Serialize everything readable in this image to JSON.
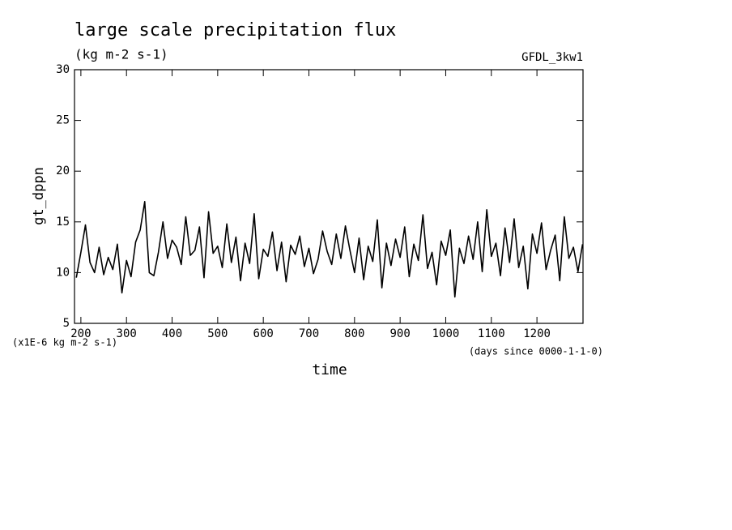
{
  "chart_data": {
    "type": "line",
    "title": "large scale precipitation flux",
    "subtitle": "(kg m-2 s-1)",
    "dataset_label": "GFDL_3kw1",
    "y_label": "gt_dppn",
    "y_units": "(x1E-6 kg m-2 s-1)",
    "x_label": "time",
    "x_units": "(days since 0000-1-1-0)",
    "xlim": [
      186,
      1301
    ],
    "xticks": [
      200,
      300,
      400,
      500,
      600,
      700,
      800,
      900,
      1000,
      1100,
      1200
    ],
    "ylim": [
      5,
      30
    ],
    "yticks": [
      5,
      10,
      15,
      20,
      25,
      30
    ],
    "grid": false,
    "series": [
      {
        "name": "gt_dppn",
        "color": "#000000",
        "x": [
          190,
          200,
          210,
          220,
          230,
          240,
          250,
          260,
          270,
          280,
          290,
          300,
          310,
          320,
          330,
          340,
          350,
          360,
          370,
          380,
          390,
          400,
          410,
          420,
          430,
          440,
          450,
          460,
          470,
          480,
          490,
          500,
          510,
          520,
          530,
          540,
          550,
          560,
          570,
          580,
          590,
          600,
          610,
          620,
          630,
          640,
          650,
          660,
          670,
          680,
          690,
          700,
          710,
          720,
          730,
          740,
          750,
          760,
          770,
          780,
          790,
          800,
          810,
          820,
          830,
          840,
          850,
          860,
          870,
          880,
          890,
          900,
          910,
          920,
          930,
          940,
          950,
          960,
          970,
          980,
          990,
          1000,
          1010,
          1020,
          1030,
          1040,
          1050,
          1060,
          1070,
          1080,
          1090,
          1100,
          1110,
          1120,
          1130,
          1140,
          1150,
          1160,
          1170,
          1180,
          1190,
          1200,
          1210,
          1220,
          1230,
          1240,
          1250,
          1260,
          1270,
          1280,
          1290,
          1300
        ],
        "values": [
          9.5,
          12,
          14.7,
          11,
          10,
          12.5,
          9.8,
          11.5,
          10.3,
          12.8,
          8,
          11.2,
          9.6,
          13,
          14.2,
          17,
          10,
          9.7,
          12,
          15,
          11.4,
          13.2,
          12.5,
          10.8,
          15.5,
          11.7,
          12.2,
          14.5,
          9.5,
          16,
          11.9,
          12.6,
          10.5,
          14.8,
          11,
          13.5,
          9.2,
          12.9,
          10.9,
          15.8,
          9.4,
          12.3,
          11.6,
          14,
          10.2,
          13,
          9.1,
          12.7,
          11.8,
          13.6,
          10.6,
          12.4,
          9.9,
          11.3,
          14.1,
          12.1,
          10.8,
          13.8,
          11.4,
          14.6,
          12.2,
          10,
          13.4,
          9.3,
          12.6,
          11.1,
          15.2,
          8.5,
          12.9,
          10.7,
          13.3,
          11.5,
          14.5,
          9.6,
          12.8,
          11.2,
          15.7,
          10.4,
          12,
          8.8,
          13.1,
          11.7,
          14.2,
          7.6,
          12.4,
          10.9,
          13.6,
          11.3,
          15,
          10.1,
          16.2,
          11.6,
          12.9,
          9.7,
          14.4,
          11,
          15.3,
          10.5,
          12.6,
          8.4,
          13.8,
          11.9,
          14.9,
          10.3,
          12.2,
          13.7,
          9.2,
          15.5,
          11.4,
          12.5,
          10.1,
          12.8
        ]
      }
    ]
  }
}
